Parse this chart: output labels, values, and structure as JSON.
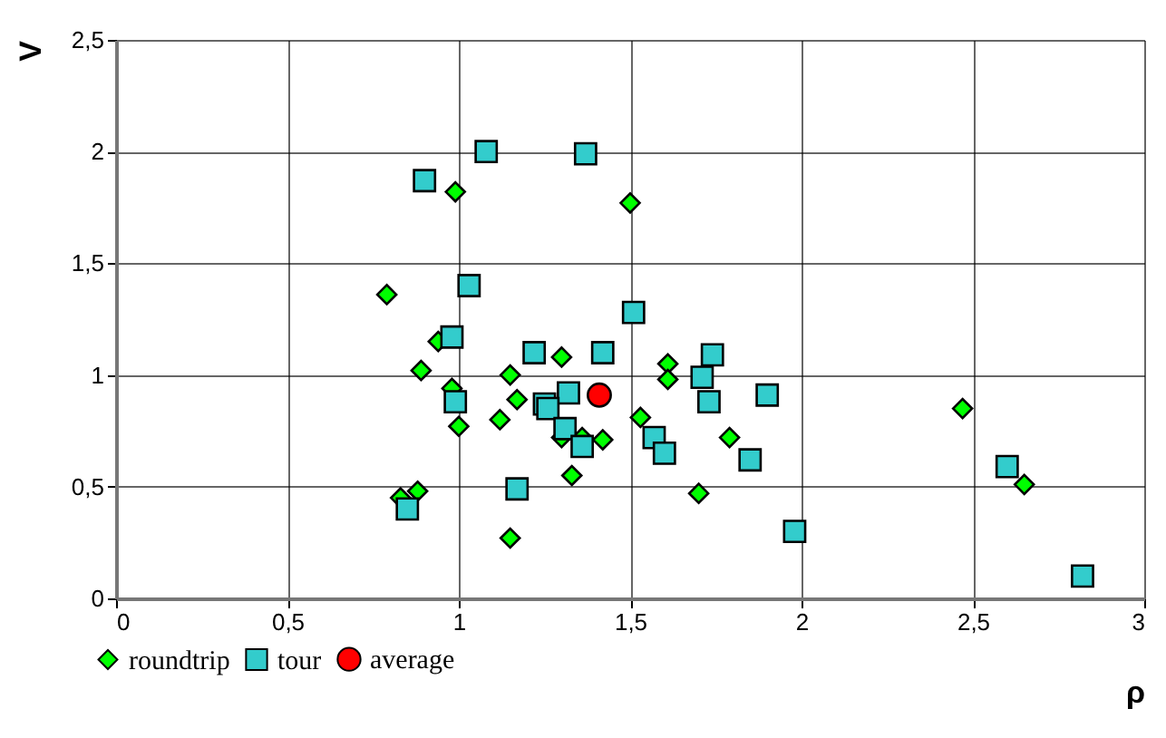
{
  "chart_data": {
    "type": "scatter",
    "xlabel": "ρ",
    "ylabel": "V",
    "xlim": [
      0,
      3
    ],
    "ylim": [
      0,
      2.5
    ],
    "xticks": [
      0,
      {
        "value": 0.5,
        "label": "0,5"
      },
      1,
      {
        "value": 1.5,
        "label": "1,5"
      },
      2,
      {
        "value": 2.5,
        "label": "2,5"
      },
      3
    ],
    "yticks": [
      0,
      {
        "value": 0.5,
        "label": "0,5"
      },
      1,
      {
        "value": 1.5,
        "label": "1,5"
      },
      2,
      {
        "value": 2.5,
        "label": "2,5"
      }
    ],
    "grid": true,
    "legend": "bottom left",
    "series": [
      {
        "name": "roundtrip",
        "color": "#00ff00",
        "marker": "diamond",
        "x": [
          0.99,
          1.5,
          0.79,
          0.94,
          1.3,
          0.89,
          1.15,
          1.61,
          1.61,
          0.98,
          1.17,
          1.12,
          1.0,
          1.53,
          1.3,
          1.42,
          1.36,
          1.33,
          0.83,
          0.88,
          1.15,
          1.79,
          1.7,
          2.47,
          2.65
        ],
        "values": [
          1.82,
          1.77,
          1.36,
          1.15,
          1.08,
          1.02,
          1.0,
          1.05,
          0.98,
          0.94,
          0.89,
          0.8,
          0.77,
          0.81,
          0.72,
          0.71,
          0.72,
          0.55,
          0.45,
          0.48,
          0.27,
          0.72,
          0.47,
          0.85,
          0.51
        ]
      },
      {
        "name": "tour",
        "color": "#33cccc",
        "marker": "square",
        "x": [
          1.08,
          1.37,
          0.9,
          1.03,
          1.51,
          0.98,
          1.22,
          1.42,
          0.99,
          1.32,
          1.25,
          1.26,
          1.31,
          1.36,
          1.57,
          1.6,
          1.17,
          0.85,
          1.74,
          1.71,
          1.73,
          1.9,
          1.85,
          1.98,
          2.6,
          2.82
        ],
        "values": [
          2.0,
          1.99,
          1.87,
          1.4,
          1.28,
          1.17,
          1.1,
          1.1,
          0.88,
          0.92,
          0.87,
          0.85,
          0.76,
          0.68,
          0.72,
          0.65,
          0.49,
          0.4,
          1.09,
          0.99,
          0.88,
          0.91,
          0.62,
          0.3,
          0.59,
          0.1
        ]
      },
      {
        "name": "average",
        "color": "#ff0000",
        "marker": "circle",
        "x": [
          1.41
        ],
        "values": [
          0.91
        ]
      }
    ]
  }
}
